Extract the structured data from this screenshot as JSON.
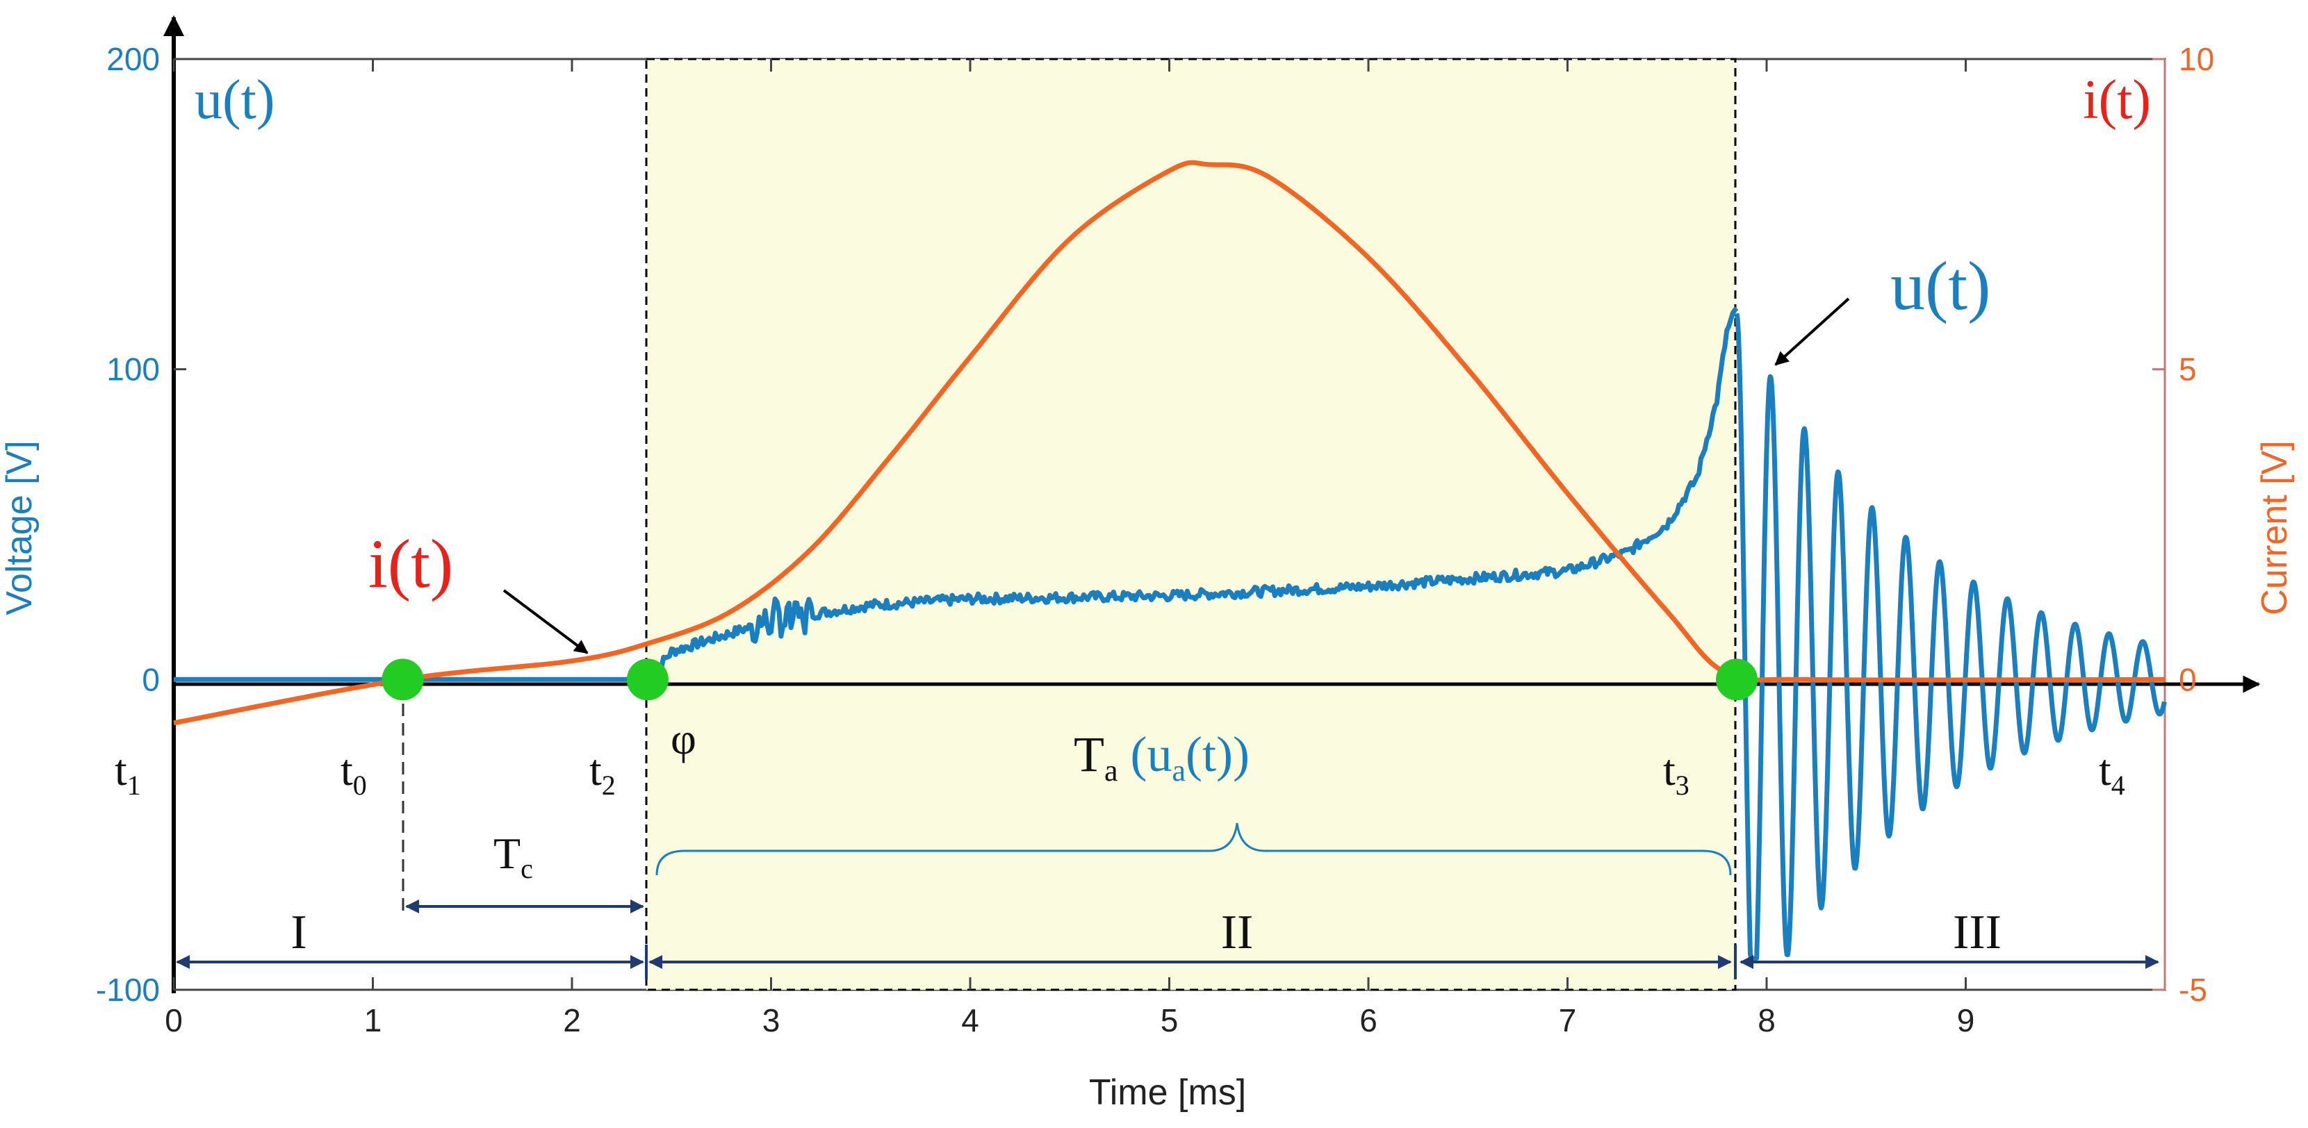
{
  "chart_data": {
    "type": "line",
    "title": "",
    "xlabel": "Time [ms]",
    "ylabel_left": "Voltage [V]",
    "ylabel_right": "Current [V]",
    "xlim": [
      0,
      10
    ],
    "ylim_left": [
      -100,
      200
    ],
    "ylim_right": [
      -5,
      10
    ],
    "x_ticks": [
      "0",
      "1",
      "2",
      "3",
      "4",
      "5",
      "6",
      "7",
      "8",
      "9"
    ],
    "y_left_ticks": [
      "-100",
      "0",
      "100",
      "200"
    ],
    "y_right_ticks": [
      "-5",
      "0",
      "5",
      "10"
    ],
    "series": [
      {
        "name": "u(t)",
        "axis": "left",
        "color": "#1a7fbf",
        "x": [
          0,
          2.38,
          2.5,
          2.7,
          3.0,
          3.5,
          4.0,
          5.0,
          6.0,
          7.0,
          7.3,
          7.5,
          7.65,
          7.75,
          7.8,
          7.85
        ],
        "y": [
          0,
          0,
          9,
          13,
          19,
          24,
          26,
          27,
          30,
          35,
          41,
          50,
          65,
          90,
          112,
          120
        ],
        "ringing": {
          "start": 7.85,
          "end": 10.0,
          "amplitude": 118,
          "period": 0.17,
          "decay_tau": 0.9,
          "min_observed": -90
        }
      },
      {
        "name": "i(t)",
        "axis": "right",
        "color": "#f26522",
        "x": [
          0,
          1.15,
          2.0,
          2.4,
          2.8,
          3.2,
          3.6,
          4.0,
          4.5,
          5.0,
          5.2,
          5.5,
          6.0,
          6.5,
          7.0,
          7.5,
          7.8,
          8.2,
          10.0
        ],
        "y": [
          -0.7,
          0,
          0.3,
          0.6,
          1.1,
          2.1,
          3.6,
          5.2,
          7.1,
          8.2,
          8.3,
          8.1,
          6.8,
          5.0,
          3.0,
          1.1,
          0.1,
          0.0,
          0.0
        ]
      }
    ],
    "annotations": {
      "u_left": "u(t)",
      "i_right": "i(t)",
      "u_arrow_label": "u(t)",
      "i_arrow_label": "i(t)",
      "t1": "t1",
      "t0": "t0",
      "t2": "t2",
      "t3": "t3",
      "t4": "t4",
      "phi": "φ",
      "Tc": "Tc",
      "Ta_main": "Ta",
      "Ta_paren": "(ua(t))",
      "region_I": "I",
      "region_II": "II",
      "region_III": "III"
    },
    "markers_x": [
      1.15,
      2.38,
      7.85
    ],
    "shaded_region": [
      2.38,
      7.85
    ]
  }
}
